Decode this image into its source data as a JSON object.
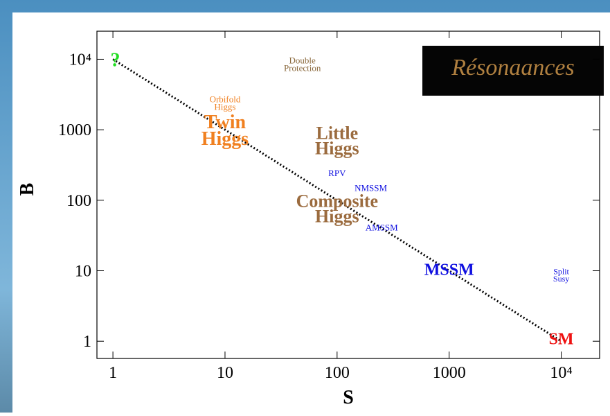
{
  "chart_data": {
    "type": "scatter",
    "xlabel": "S",
    "ylabel": "B",
    "xscale": "log",
    "yscale": "log",
    "xlim": [
      0.72,
      22000
    ],
    "ylim": [
      0.57,
      25000
    ],
    "xticks": [
      1,
      10,
      100,
      1000,
      {
        "value": 10000,
        "label": "10⁴"
      }
    ],
    "yticks": [
      1,
      10,
      100,
      1000,
      {
        "value": 10000,
        "label": "10⁴"
      }
    ],
    "line": {
      "x": [
        1,
        10000
      ],
      "values": [
        10000,
        1
      ],
      "color": "#000000"
    },
    "labels": [
      {
        "text": "?",
        "x": 1.05,
        "y": 10000,
        "color": "#22dd22"
      },
      {
        "text": "Double Protection",
        "x": 49,
        "y": 8500,
        "color": "#8b6a3e"
      },
      {
        "text": "Orbifold Higgs",
        "x": 10,
        "y": 2400,
        "color": "#f08020"
      },
      {
        "text": "Twin Higgs",
        "x": 10,
        "y": 1000,
        "color": "#f08020"
      },
      {
        "text": "Little Higgs",
        "x": 100,
        "y": 710,
        "color": "#9b6b3e"
      },
      {
        "text": "RPV",
        "x": 100,
        "y": 245,
        "color": "#1010e0"
      },
      {
        "text": "NMSSM",
        "x": 200,
        "y": 150,
        "color": "#1010e0"
      },
      {
        "text": "Composite Higgs",
        "x": 100,
        "y": 77,
        "color": "#9b6b3e"
      },
      {
        "text": "AMSSM",
        "x": 250,
        "y": 41,
        "color": "#1010e0"
      },
      {
        "text": "MSSM",
        "x": 1000,
        "y": 10.5,
        "color": "#1010e0"
      },
      {
        "text": "Split Susy",
        "x": 10000,
        "y": 8.7,
        "color": "#1010e0"
      },
      {
        "text": "SM",
        "x": 10000,
        "y": 1.1,
        "color": "#ee1111"
      }
    ],
    "logo": "Résonaances"
  }
}
